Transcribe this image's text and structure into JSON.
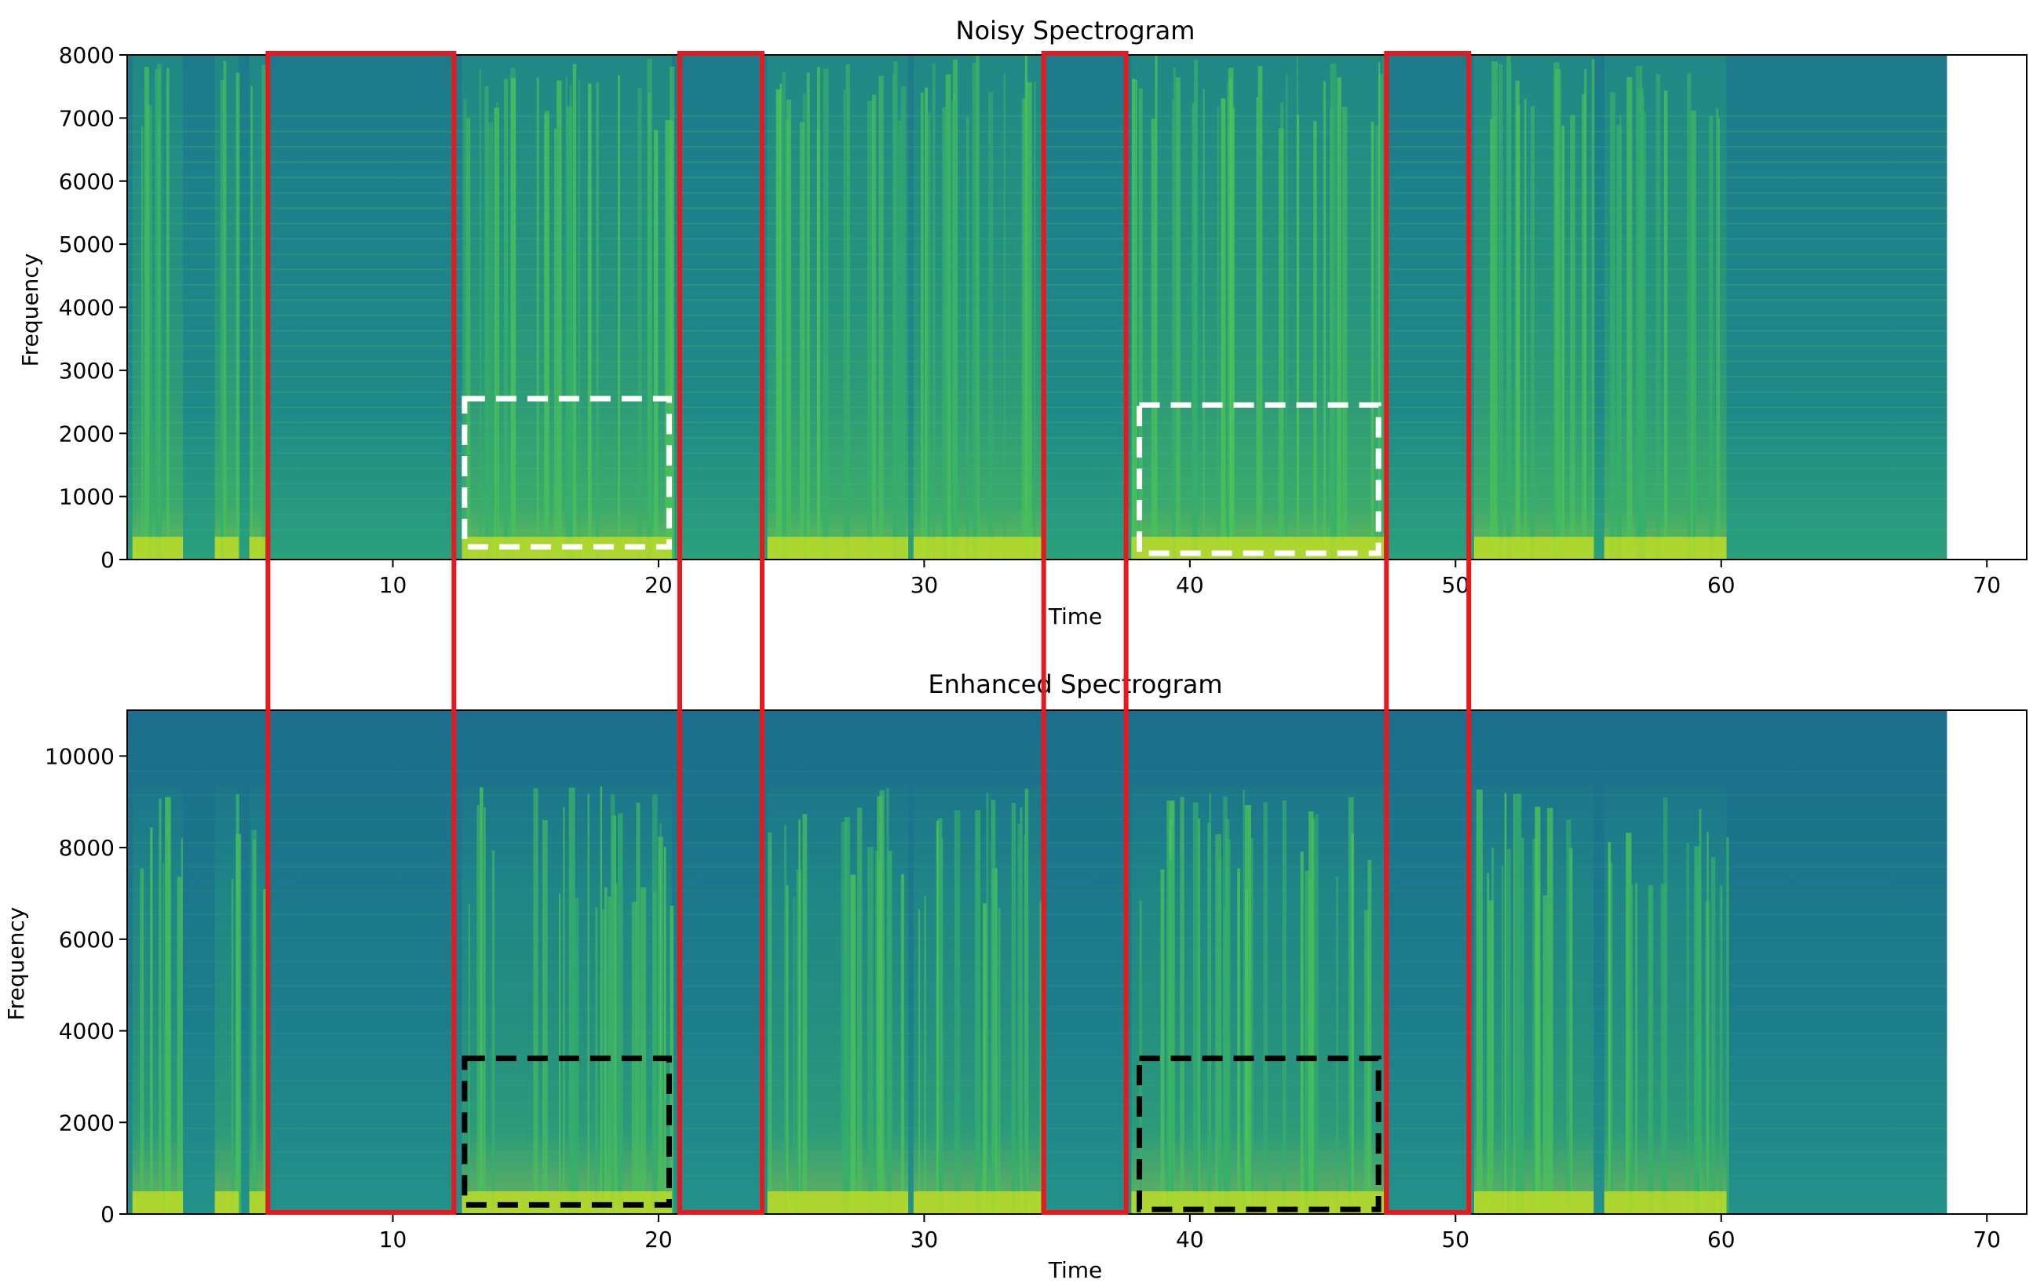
{
  "chart_data": [
    {
      "type": "heatmap",
      "title": "Noisy Spectrogram",
      "xlabel": "Time",
      "ylabel": "Frequency",
      "xlim": [
        0,
        71.5
      ],
      "ylim": [
        0,
        8000
      ],
      "xticks": [
        10,
        20,
        30,
        40,
        50,
        60,
        70
      ],
      "yticks": [
        0,
        1000,
        2000,
        3000,
        4000,
        5000,
        6000,
        7000,
        8000
      ],
      "data_end_time": 68.5,
      "colormap": "viridis",
      "white_dashed_boxes": [
        {
          "t0": 12.7,
          "t1": 20.4,
          "f0": 200,
          "f1": 2550
        },
        {
          "t0": 38.1,
          "t1": 47.1,
          "f0": 100,
          "f1": 2450
        }
      ]
    },
    {
      "type": "heatmap",
      "title": "Enhanced Spectrogram",
      "xlabel": "Time",
      "ylabel": "Frequency",
      "xlim": [
        0,
        71.5
      ],
      "ylim": [
        0,
        11000
      ],
      "xticks": [
        10,
        20,
        30,
        40,
        50,
        60,
        70
      ],
      "yticks": [
        0,
        2000,
        4000,
        6000,
        8000,
        10000
      ],
      "data_end_time": 68.5,
      "colormap": "viridis",
      "black_dashed_boxes": [
        {
          "t0": 12.7,
          "t1": 20.4,
          "f0": 200,
          "f1": 3400
        },
        {
          "t0": 38.1,
          "t1": 47.1,
          "f0": 100,
          "f1": 3400
        }
      ]
    }
  ],
  "red_highlight_intervals": [
    {
      "t0": 5.3,
      "t1": 12.3
    },
    {
      "t0": 20.8,
      "t1": 23.9
    },
    {
      "t0": 34.5,
      "t1": 37.6
    },
    {
      "t0": 47.4,
      "t1": 50.5
    }
  ],
  "speech_segments": [
    [
      0.2,
      2.1
    ],
    [
      3.3,
      4.2
    ],
    [
      4.6,
      5.2
    ],
    [
      12.6,
      20.5
    ],
    [
      24.1,
      29.4
    ],
    [
      29.6,
      34.4
    ],
    [
      37.8,
      47.3
    ],
    [
      50.7,
      55.2
    ],
    [
      55.6,
      60.2
    ]
  ],
  "colors": {
    "background_noise": "#1f7a8c",
    "speech": "#3fb84f",
    "speech_low": "#c7e020",
    "highlight": "#e6191f"
  }
}
